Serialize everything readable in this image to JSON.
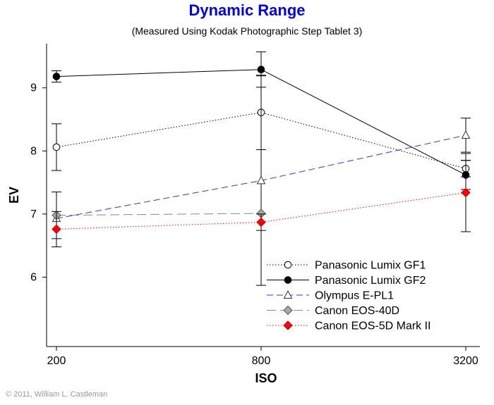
{
  "chart_data": {
    "type": "line",
    "title": "Dynamic Range",
    "subtitle": "(Measured Using Kodak Photographic Step Tablet 3)",
    "xlabel": "ISO",
    "ylabel": "EV",
    "x_scale": "log",
    "categories": [
      "200",
      "800",
      "3200"
    ],
    "x": [
      200,
      800,
      3200
    ],
    "ylim": [
      4.9,
      9.7
    ],
    "yticks": [
      6,
      7,
      8,
      9
    ],
    "grid": false,
    "legend_position": "bottom-right",
    "series": [
      {
        "name": "Panasonic Lumix GF1",
        "values": [
          8.06,
          8.61,
          7.72
        ],
        "error": [
          0.37,
          0.59,
          0.13
        ],
        "color": "#000000",
        "line_style": "dotted",
        "marker": "open-circle"
      },
      {
        "name": "Panasonic Lumix GF2",
        "values": [
          9.18,
          9.29,
          7.62
        ],
        "error": [
          0.09,
          0.28,
          0.23
        ],
        "color": "#000000",
        "line_style": "solid",
        "marker": "filled-circle"
      },
      {
        "name": "Olympus E-PL1",
        "values": [
          6.93,
          7.53,
          8.25
        ],
        "error": [
          0.0,
          1.66,
          0.27
        ],
        "color": "#3333ee",
        "line_style": "dashed",
        "marker": "open-triangle"
      },
      {
        "name": "Canon EOS-40D",
        "values": [
          6.98,
          7.01,
          null
        ],
        "error": [
          0.37,
          0.0,
          null
        ],
        "color": "#888888",
        "line_style": "long-dashed",
        "marker": "gray-diamond"
      },
      {
        "name": "Canon EOS-5D Mark II",
        "values": [
          6.76,
          6.87,
          7.34
        ],
        "error": [
          0.28,
          0.13,
          0.62
        ],
        "color": "#ff0000",
        "line_style": "dotted",
        "marker": "red-diamond"
      }
    ]
  },
  "copyright": "© 2011, William L. Castleman"
}
